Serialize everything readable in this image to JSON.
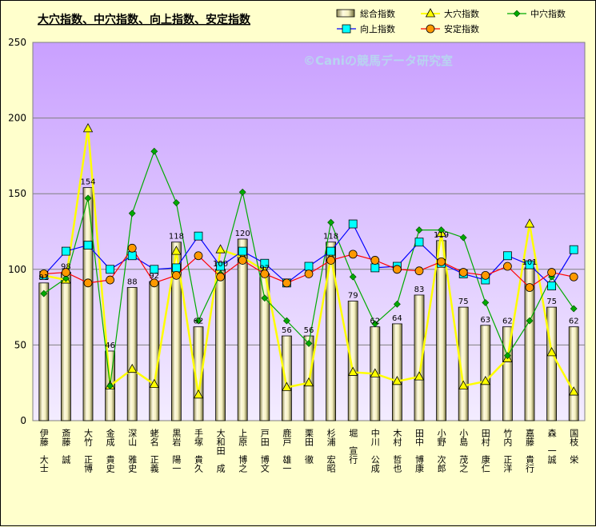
{
  "watermark": "©Caniの競馬データ研究室",
  "chart_data": {
    "type": "bar",
    "title": "大穴指数、中穴指数、向上指数、安定指数",
    "ylim": [
      0,
      250
    ],
    "yticks": [
      0,
      50,
      100,
      150,
      200,
      250
    ],
    "grid": "horizontal",
    "legend_position": "top-right",
    "categories": [
      "伊藤　大士",
      "斎藤　誠",
      "大竹　正博",
      "金成　貴史",
      "深山　雅史",
      "蛯名　正義",
      "黒岩　陽一",
      "手塚　貴久",
      "大和田　成",
      "上原　博之",
      "戸田　博文",
      "鹿戸　雄一",
      "栗田　徹",
      "杉浦　宏昭",
      "堀　宣行",
      "中川　公成",
      "木村　哲也",
      "田中　博康",
      "小野　次郎",
      "小島　茂之",
      "田村　康仁",
      "竹内　正洋",
      "嘉藤　貴行",
      "森　一誠",
      "国枝　栄"
    ],
    "series": [
      {
        "name": "総合指数",
        "kind": "bar",
        "color": "#EEE8AA",
        "values": [
          91,
          98,
          154,
          46,
          88,
          92,
          118,
          62,
          100,
          120,
          97,
          56,
          56,
          118,
          79,
          62,
          64,
          83,
          119,
          75,
          63,
          62,
          101,
          75,
          62
        ]
      },
      {
        "name": "大穴指数",
        "kind": "line",
        "color": "#FFFF00",
        "marker": "triangle",
        "values": [
          96,
          93,
          193,
          23,
          34,
          24,
          112,
          17,
          113,
          108,
          99,
          22,
          25,
          108,
          32,
          31,
          26,
          29,
          124,
          23,
          26,
          41,
          130,
          45,
          19
        ]
      },
      {
        "name": "中穴指数",
        "kind": "line",
        "color": "#00AA00",
        "marker": "diamond",
        "values": [
          84,
          94,
          147,
          23,
          137,
          178,
          144,
          66,
          97,
          151,
          81,
          66,
          51,
          131,
          95,
          64,
          77,
          126,
          126,
          121,
          78,
          43,
          66,
          95,
          74
        ]
      },
      {
        "name": "向上指数",
        "kind": "line",
        "color": "#0000FF",
        "marker": "square",
        "values": [
          96,
          112,
          116,
          100,
          109,
          100,
          101,
          122,
          102,
          112,
          104,
          91,
          102,
          112,
          130,
          101,
          102,
          118,
          104,
          97,
          93,
          109,
          103,
          89,
          113
        ]
      },
      {
        "name": "安定指数",
        "kind": "line",
        "color": "#FF0000",
        "marker": "circle",
        "values": [
          97,
          98,
          91,
          93,
          114,
          91,
          96,
          109,
          95,
          106,
          97,
          91,
          97,
          106,
          110,
          106,
          100,
          99,
          105,
          98,
          96,
          102,
          88,
          98,
          95
        ]
      }
    ]
  }
}
